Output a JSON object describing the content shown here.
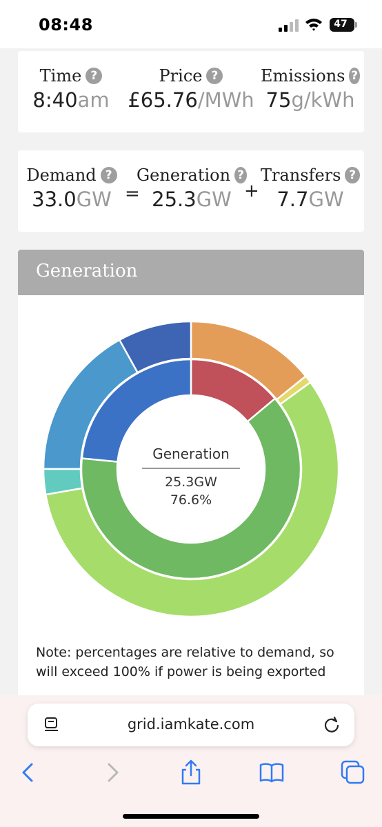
{
  "status_bar": {
    "time": "08:48",
    "battery": "47"
  },
  "summary": {
    "time": {
      "label": "Time",
      "value": "8:40",
      "unit": "am"
    },
    "price": {
      "label": "Price",
      "value": "£65.76",
      "unit": "/MWh"
    },
    "emissions": {
      "label": "Emissions",
      "value": "75",
      "unit": "g/kWh"
    },
    "help_glyph": "?"
  },
  "balance": {
    "demand": {
      "label": "Demand",
      "value": "33.0",
      "unit": "GW"
    },
    "generation": {
      "label": "Generation",
      "value": "25.3",
      "unit": "GW"
    },
    "transfers": {
      "label": "Transfers",
      "value": "7.7",
      "unit": "GW"
    },
    "equals": "=",
    "plus": "+"
  },
  "generation_panel": {
    "header": "Generation",
    "center_title": "Generation",
    "center_value": "25.3GW",
    "center_percent": "76.6%",
    "note": "Note: percentages are relative to demand, so will exceed 100% if power is being exported"
  },
  "chart_data": {
    "type": "pie",
    "inner_ring": [
      {
        "share": 0.1389,
        "color": "#c0505a"
      },
      {
        "share": 0.6267,
        "color": "#6fb962"
      },
      {
        "share": 0.2344,
        "color": "#3b72c6"
      }
    ],
    "outer_ring": [
      {
        "share": 0.1417,
        "color": "#e49d58"
      },
      {
        "share": 0.0084,
        "color": "#e4d86a"
      },
      {
        "share": 0.5722,
        "color": "#a6dc6a"
      },
      {
        "share": 0.0278,
        "color": "#62cbc0"
      },
      {
        "share": 0.1694,
        "color": "#4a98cc"
      },
      {
        "share": 0.0805,
        "color": "#3e64b4"
      }
    ]
  },
  "browser": {
    "url": "grid.iamkate.com",
    "accent_color": "#2f7bf5"
  }
}
